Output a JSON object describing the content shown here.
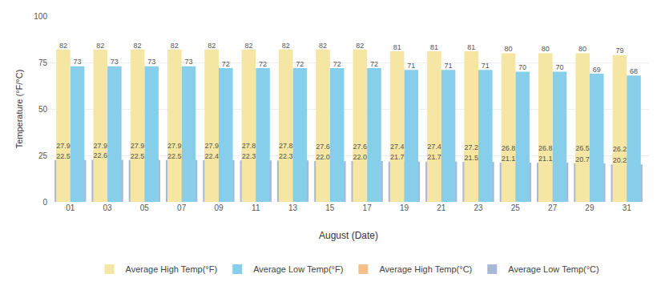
{
  "chart_data": {
    "type": "bar",
    "categories": [
      "01",
      "03",
      "05",
      "07",
      "09",
      "11",
      "13",
      "15",
      "17",
      "19",
      "21",
      "23",
      "25",
      "27",
      "29",
      "31"
    ],
    "series": [
      {
        "name": "Average High Temp(°F)",
        "color": "#F5E6A3",
        "values": [
          82,
          82,
          82,
          82,
          82,
          82,
          82,
          82,
          82,
          81,
          81,
          81,
          80,
          80,
          80,
          79
        ]
      },
      {
        "name": "Average Low Temp(°F)",
        "color": "#87CEEB",
        "values": [
          73,
          73,
          73,
          73,
          72,
          72,
          72,
          72,
          72,
          71,
          71,
          71,
          70,
          70,
          69,
          68
        ]
      },
      {
        "name": "Average High Temp(°C)",
        "color": "#F4BF8A",
        "values": [
          27.9,
          27.9,
          27.9,
          27.9,
          27.9,
          27.8,
          27.8,
          27.6,
          27.6,
          27.4,
          27.4,
          27.2,
          26.8,
          26.8,
          26.5,
          26.2
        ],
        "value_labels": [
          "27.9",
          "27.9",
          "27.9",
          "27.9",
          "27.9",
          "27.8",
          "27.8",
          "27.6",
          "27.6",
          "27.4",
          "27.4",
          "27.2",
          "26.8",
          "26.8",
          "26.5",
          "26.2"
        ]
      },
      {
        "name": "Average Low Temp(°C)",
        "color": "#A8B8D8",
        "values": [
          22.5,
          22.6,
          22.5,
          22.5,
          22.4,
          22.3,
          22.3,
          22.0,
          22.0,
          21.7,
          21.7,
          21.5,
          21.1,
          21.1,
          20.7,
          20.2
        ],
        "value_labels": [
          "22.5",
          "22.6",
          "22.5",
          "22.5",
          "22.4",
          "22.3",
          "22.3",
          "22.0",
          "22.0",
          "21.7",
          "21.7",
          "21.5",
          "21.1",
          "21.1",
          "20.7",
          "20.2"
        ]
      }
    ],
    "xlabel": "August (Date)",
    "ylabel": "Temperature (°F/°C)",
    "ylim": [
      0,
      100
    ],
    "yticks": [
      0,
      25,
      50,
      75,
      100
    ],
    "grid": true,
    "legend": "bottom",
    "data_labels": true
  }
}
